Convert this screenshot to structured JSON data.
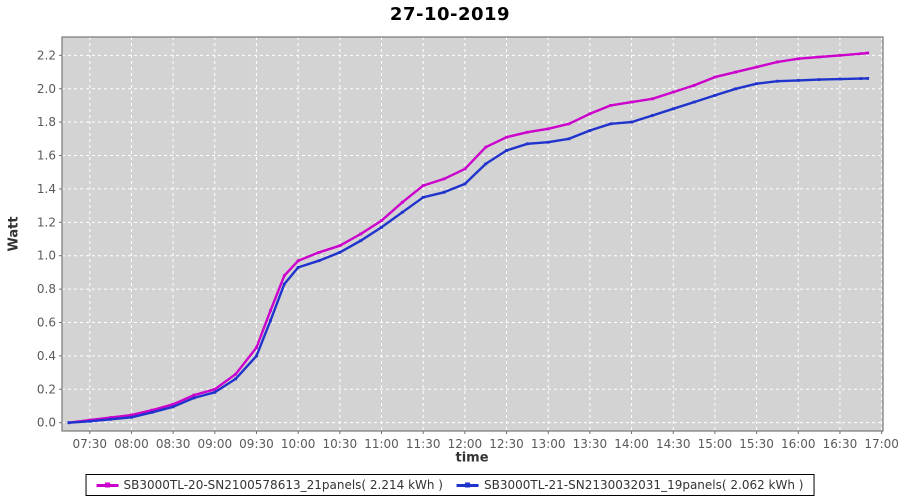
{
  "title": "27-10-2019",
  "chart_data": {
    "type": "line",
    "title": "27-10-2019",
    "xlabel": "time",
    "ylabel": "Watt",
    "legend_position": "bottom-center",
    "grid": {
      "show": true,
      "color": "#ffffff",
      "style": "dashed",
      "plot_background": "#d3d3d3",
      "plot_border": "#777777"
    },
    "x_tick_labels": [
      "07:30",
      "08:00",
      "08:30",
      "09:00",
      "09:30",
      "10:00",
      "10:30",
      "11:00",
      "11:30",
      "12:00",
      "12:30",
      "13:00",
      "13:30",
      "14:00",
      "14:30",
      "15:00",
      "15:30",
      "16:00",
      "16:30",
      "17:00"
    ],
    "y_ticks": [
      0.0,
      0.2,
      0.4,
      0.6,
      0.8,
      1.0,
      1.2,
      1.4,
      1.6,
      1.8,
      2.0,
      2.2
    ],
    "xlim_minutes": [
      430,
      1021
    ],
    "ylim": [
      -0.05,
      2.31
    ],
    "sample_times": [
      "07:15",
      "07:30",
      "07:45",
      "08:00",
      "08:15",
      "08:30",
      "08:45",
      "09:00",
      "09:15",
      "09:30",
      "09:40",
      "09:50",
      "10:00",
      "10:15",
      "10:30",
      "10:45",
      "11:00",
      "11:15",
      "11:30",
      "11:45",
      "12:00",
      "12:15",
      "12:30",
      "12:45",
      "13:00",
      "13:15",
      "13:30",
      "13:45",
      "14:00",
      "14:15",
      "14:30",
      "14:45",
      "15:00",
      "15:15",
      "15:30",
      "15:45",
      "16:00",
      "16:15",
      "16:30",
      "16:45",
      "16:50"
    ],
    "series": [
      {
        "name": "SB3000TL-20-SN2100578613_21panels( 2.214 kWh )",
        "color": "#cc00cc",
        "total_kwh": "2.214",
        "values": [
          0.0,
          0.015,
          0.03,
          0.045,
          0.075,
          0.11,
          0.165,
          0.2,
          0.29,
          0.45,
          0.67,
          0.88,
          0.97,
          1.02,
          1.06,
          1.13,
          1.21,
          1.32,
          1.42,
          1.46,
          1.52,
          1.65,
          1.71,
          1.74,
          1.76,
          1.79,
          1.85,
          1.9,
          1.92,
          1.94,
          1.98,
          2.02,
          2.07,
          2.1,
          2.13,
          2.16,
          2.18,
          2.19,
          2.2,
          2.21,
          2.214
        ]
      },
      {
        "name": "SB3000TL-21-SN2130032031_19panels( 2.062 kWh )",
        "color": "#2033cc",
        "total_kwh": "2.062",
        "values": [
          0.0,
          0.008,
          0.02,
          0.032,
          0.062,
          0.095,
          0.148,
          0.182,
          0.262,
          0.4,
          0.61,
          0.83,
          0.93,
          0.97,
          1.02,
          1.09,
          1.17,
          1.26,
          1.35,
          1.38,
          1.43,
          1.55,
          1.63,
          1.67,
          1.68,
          1.7,
          1.75,
          1.79,
          1.8,
          1.84,
          1.88,
          1.92,
          1.96,
          2.0,
          2.03,
          2.045,
          2.05,
          2.055,
          2.058,
          2.061,
          2.062
        ]
      }
    ],
    "style": {
      "tick_label_color": "#5a5a5a",
      "tick_mark_color": "#6e6e6e",
      "title_color": "#000000",
      "axis_label_color": "#333333"
    }
  }
}
